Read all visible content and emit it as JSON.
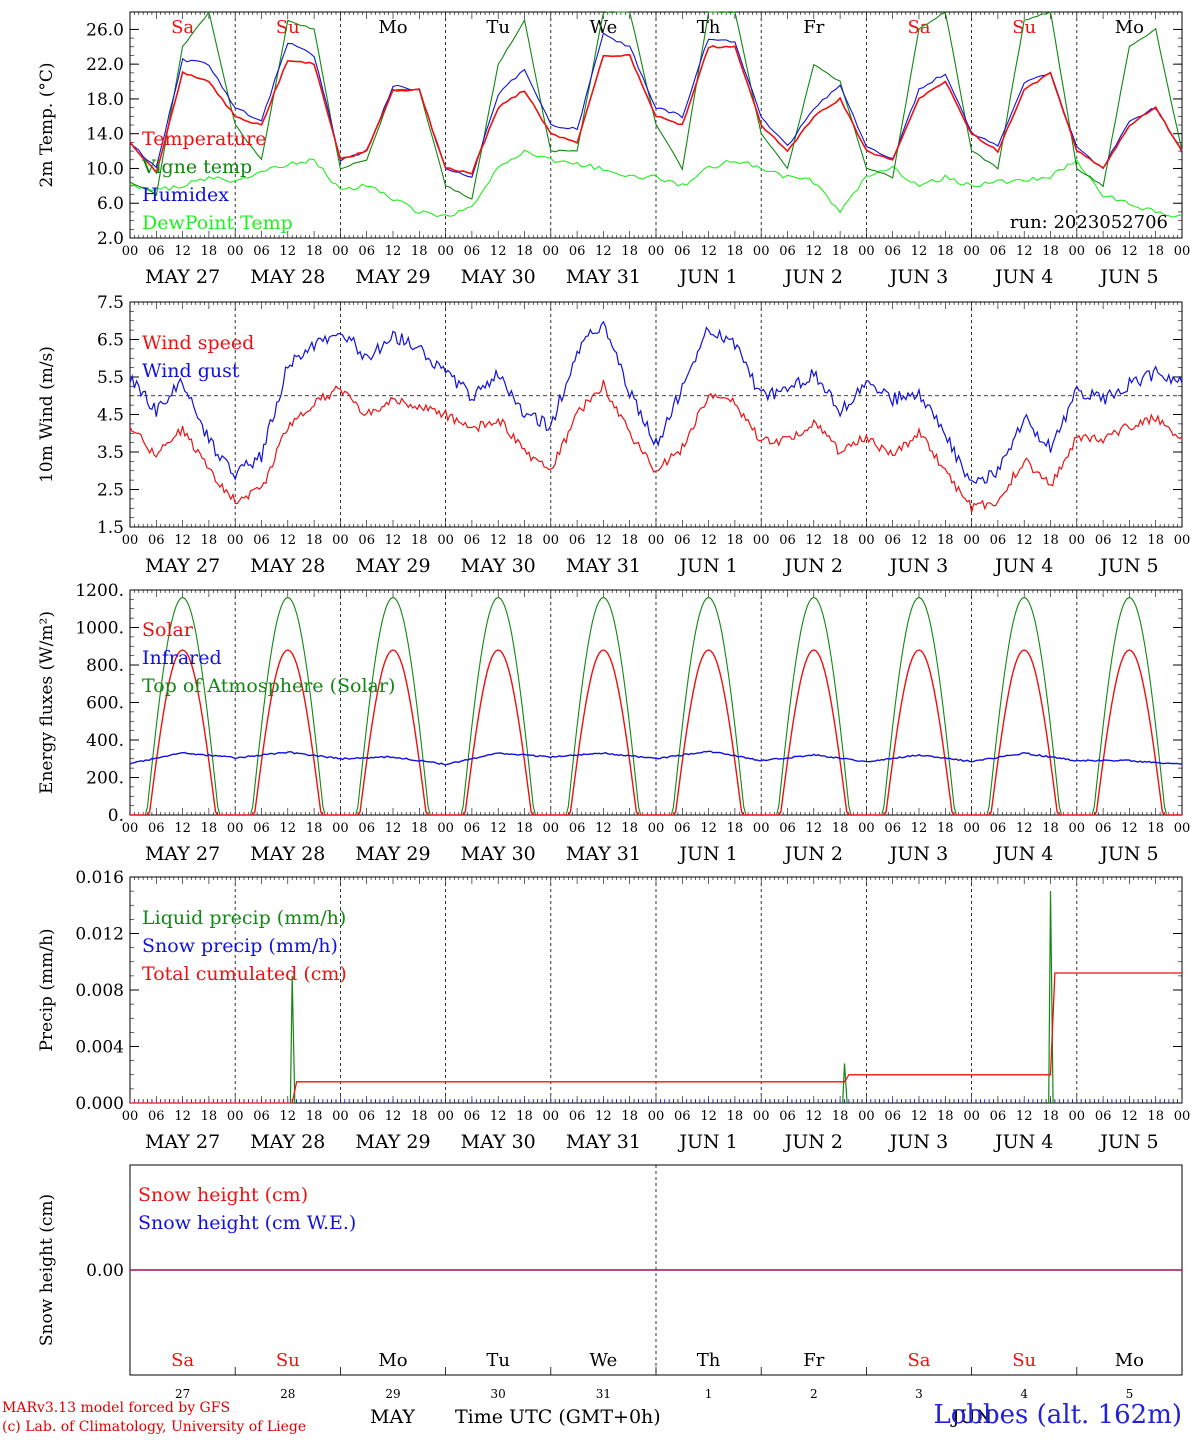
{
  "colors": {
    "temperature": "#ee1111",
    "vigne": "#118811",
    "humidex": "#1111dd",
    "dewpoint": "#22ee22",
    "infrared": "#1111dd",
    "toa": "#118811",
    "liquid": "#118811",
    "snow_precip": "#1111dd",
    "cumulated": "#ee1111",
    "weekend": "#ee1111",
    "weekday": "#000000"
  },
  "chart_data": [
    {
      "type": "line",
      "ylabel": "2m Temp. (°C)",
      "ylim": [
        2,
        28
      ],
      "yticks": [
        "2.0",
        "6.0",
        "10.0",
        "14.0",
        "18.0",
        "22.0",
        "26.0"
      ],
      "legend": [
        "Temperature",
        "Vigne temp",
        "Humidex",
        "DewPoint Temp"
      ],
      "annotation": "run: 2023052706",
      "series": [
        {
          "name": "Temperature",
          "x": [
            0,
            6,
            12,
            18,
            24,
            30,
            36,
            42,
            48,
            54,
            60,
            66,
            72,
            78,
            84,
            90,
            96,
            102,
            108,
            114,
            120,
            126,
            132,
            138,
            144,
            150,
            156,
            162,
            168,
            174,
            180,
            186,
            192,
            198,
            204,
            210,
            216,
            222,
            228,
            234,
            240
          ],
          "values": [
            13,
            9.5,
            21,
            20,
            16,
            15,
            22.5,
            22,
            11,
            12,
            19,
            19,
            10,
            9.5,
            17,
            19,
            14,
            13,
            23,
            23,
            16,
            15,
            24,
            24,
            15,
            12,
            16,
            18,
            12,
            11,
            18,
            20,
            14,
            12,
            19,
            21,
            12,
            10,
            15,
            17,
            12
          ]
        },
        {
          "name": "Vigne temp",
          "x": [
            0,
            6,
            12,
            18,
            24,
            30,
            36,
            42,
            48,
            54,
            60,
            66,
            72,
            78,
            84,
            90,
            96,
            102,
            108,
            114,
            120,
            126,
            132,
            138,
            144,
            150,
            156,
            162,
            168,
            174,
            180,
            186,
            192,
            198,
            204,
            210,
            216,
            222,
            228,
            234,
            240
          ],
          "values": [
            8.5,
            7,
            24,
            28,
            15,
            11,
            27,
            26,
            10,
            11,
            19,
            19,
            8,
            6.5,
            22,
            27,
            12,
            12,
            28,
            28,
            15,
            10,
            28,
            28,
            14,
            10,
            22,
            20,
            10,
            9,
            26,
            28,
            12,
            10,
            27,
            28,
            10,
            8,
            24,
            26,
            12
          ]
        },
        {
          "name": "Humidex",
          "x": [
            0,
            6,
            12,
            18,
            24,
            30,
            36,
            42,
            48,
            54,
            60,
            66,
            72,
            78,
            84,
            90,
            96,
            102,
            108,
            114,
            120,
            126,
            132,
            138,
            144,
            150,
            156,
            162,
            168,
            174,
            180,
            186,
            192,
            198,
            204,
            210,
            216,
            222,
            228,
            234,
            240
          ],
          "values": [
            13,
            10,
            22.5,
            22,
            17,
            15.5,
            24.5,
            23,
            11,
            12,
            19.5,
            19,
            10,
            9,
            18.5,
            21.5,
            15,
            14.5,
            25.5,
            24,
            17,
            16,
            25,
            24.5,
            16,
            12.5,
            17,
            19.5,
            12.5,
            11,
            19,
            21,
            14,
            12.5,
            20,
            21,
            12.5,
            10,
            15.5,
            17,
            12
          ]
        },
        {
          "name": "DewPoint Temp",
          "x": [
            0,
            6,
            12,
            18,
            24,
            30,
            36,
            42,
            48,
            54,
            60,
            66,
            72,
            78,
            84,
            90,
            96,
            102,
            108,
            114,
            120,
            126,
            132,
            138,
            144,
            150,
            156,
            162,
            168,
            174,
            180,
            186,
            192,
            198,
            204,
            210,
            216,
            222,
            228,
            234,
            240
          ],
          "values": [
            8,
            7.5,
            8,
            9,
            8.5,
            9.5,
            10.5,
            11,
            7.5,
            8,
            6.5,
            5,
            4.5,
            5.5,
            10,
            12,
            11,
            10.5,
            10,
            9,
            9,
            8,
            10,
            11,
            10,
            9,
            8.5,
            5,
            9,
            10,
            8,
            9,
            8,
            8.5,
            8.5,
            9,
            11,
            7,
            6,
            5,
            4.5
          ]
        }
      ]
    },
    {
      "type": "line",
      "ylabel": "10m Wind (m/s)",
      "ylim": [
        1.5,
        7.5
      ],
      "yticks": [
        "1.5",
        "2.5",
        "3.5",
        "4.5",
        "5.5",
        "6.5",
        "7.5"
      ],
      "legend": [
        "Wind speed",
        "Wind gust"
      ],
      "reference_line": 5.0,
      "series": [
        {
          "name": "Wind speed",
          "x": [
            0,
            6,
            12,
            18,
            24,
            30,
            36,
            42,
            48,
            54,
            60,
            66,
            72,
            78,
            84,
            90,
            96,
            102,
            108,
            114,
            120,
            126,
            132,
            138,
            144,
            150,
            156,
            162,
            168,
            174,
            180,
            186,
            192,
            198,
            204,
            210,
            216,
            222,
            228,
            234,
            240
          ],
          "values": [
            4.2,
            3.4,
            4.1,
            3.0,
            2.2,
            2.5,
            4.2,
            4.8,
            5.2,
            4.5,
            4.9,
            4.7,
            4.5,
            4.1,
            4.4,
            3.5,
            3.0,
            4.5,
            5.3,
            4.0,
            3.0,
            3.6,
            5.0,
            4.8,
            3.8,
            3.8,
            4.3,
            3.5,
            3.9,
            3.4,
            4.0,
            3.0,
            2.0,
            2.2,
            3.3,
            2.6,
            3.9,
            3.8,
            4.2,
            4.4,
            3.8
          ]
        },
        {
          "name": "Wind gust",
          "x": [
            0,
            6,
            12,
            18,
            24,
            30,
            36,
            42,
            48,
            54,
            60,
            66,
            72,
            78,
            84,
            90,
            96,
            102,
            108,
            114,
            120,
            126,
            132,
            138,
            144,
            150,
            156,
            162,
            168,
            174,
            180,
            186,
            192,
            198,
            204,
            210,
            216,
            222,
            228,
            234,
            240
          ],
          "values": [
            5.5,
            4.6,
            5.4,
            3.8,
            2.9,
            3.4,
            5.8,
            6.3,
            6.8,
            6.0,
            6.6,
            6.3,
            5.6,
            5.0,
            5.6,
            4.5,
            4.2,
            6.2,
            7.0,
            5.1,
            3.7,
            5.2,
            6.8,
            6.4,
            5.0,
            5.1,
            5.6,
            4.6,
            5.3,
            4.9,
            5.1,
            4.0,
            2.6,
            3.0,
            4.4,
            3.6,
            5.1,
            4.9,
            5.3,
            5.6,
            5.3
          ]
        }
      ]
    },
    {
      "type": "line",
      "ylabel": "Energy fluxes (W/m²)",
      "ylim": [
        0,
        1200
      ],
      "yticks": [
        "0.",
        "200.",
        "400.",
        "600.",
        "800.",
        "1000.",
        "1200."
      ],
      "legend": [
        "Solar",
        "Infrared",
        "Top of Atmosphere (Solar)"
      ],
      "solar_peak": 880,
      "toa_peak": 1160,
      "infrared": {
        "x": [
          0,
          12,
          24,
          36,
          48,
          60,
          72,
          84,
          96,
          108,
          120,
          132,
          144,
          156,
          168,
          180,
          192,
          204,
          216,
          228,
          240
        ],
        "values": [
          275,
          330,
          305,
          335,
          300,
          310,
          270,
          330,
          310,
          330,
          300,
          340,
          290,
          320,
          285,
          320,
          285,
          330,
          290,
          290,
          270
        ]
      }
    },
    {
      "type": "line",
      "ylabel": "Precip (mm/h)",
      "ylim": [
        0,
        0.016
      ],
      "yticks": [
        "0.000",
        "0.004",
        "0.008",
        "0.012",
        "0.016"
      ],
      "legend": [
        "Liquid precip (mm/h)",
        "Snow precip (mm/h)",
        "Total cumulated (cm)"
      ],
      "liquid_spikes": [
        {
          "x": 37,
          "value": 0.009
        },
        {
          "x": 163,
          "value": 0.0028
        },
        {
          "x": 210,
          "value": 0.015
        }
      ],
      "cumulated": {
        "x": [
          0,
          37,
          38,
          163,
          164,
          210,
          211,
          240
        ],
        "values": [
          0,
          0,
          0.0015,
          0.0015,
          0.002,
          0.002,
          0.0092,
          0.0092
        ]
      }
    },
    {
      "type": "line",
      "ylabel": "Snow height (cm)",
      "ylim": [
        -1,
        1
      ],
      "yticks": [
        "0.00"
      ],
      "legend": [
        "Snow height (cm)",
        "Snow height (cm W.E.)"
      ],
      "series": [
        {
          "name": "Snow height (cm)",
          "x": [
            0,
            240
          ],
          "values": [
            0,
            0
          ]
        },
        {
          "name": "Snow height (cm W.E.)",
          "x": [
            0,
            240
          ],
          "values": [
            0,
            0
          ]
        }
      ]
    }
  ],
  "x_axis": {
    "hour_labels": [
      "00",
      "06",
      "12",
      "18"
    ],
    "date_labels": [
      "MAY 27",
      "MAY 28",
      "MAY 29",
      "MAY 30",
      "MAY 31",
      "JUN  1",
      "JUN  2",
      "JUN  3",
      "JUN  4",
      "JUN  5"
    ],
    "weekdays": [
      "Sa",
      "Su",
      "Mo",
      "Tu",
      "We",
      "Th",
      "Fr",
      "Sa",
      "Su",
      "Mo"
    ],
    "weekend_flags": [
      true,
      true,
      false,
      false,
      false,
      false,
      false,
      true,
      true,
      false
    ],
    "day_numbers": [
      "27",
      "28",
      "29",
      "30",
      "31",
      "1",
      "2",
      "3",
      "4",
      "5"
    ],
    "month_left": "MAY",
    "month_right": "JUN",
    "title": "Time UTC (GMT+0h)"
  },
  "footer": {
    "model_line1": "MARv3.13 model forced by GFS",
    "model_line2": "(c) Lab. of Climatology, University of Liege",
    "station": "Lobbes (alt. 162m)"
  }
}
